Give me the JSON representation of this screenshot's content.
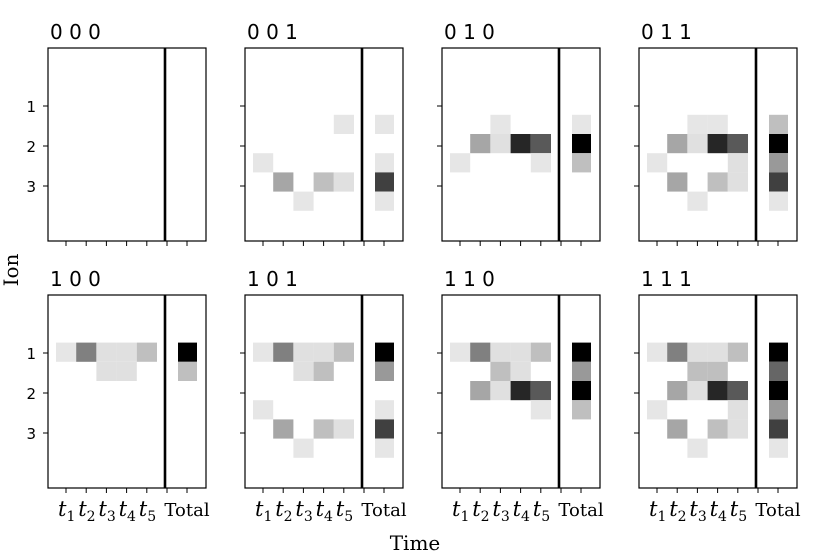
{
  "chart_data": {
    "type": "heatmap",
    "xlabel": "Time",
    "ylabel": "Ion",
    "y_ticks": [
      "1",
      "2",
      "3"
    ],
    "x_ticks": [
      {
        "base": "t",
        "sub": "1"
      },
      {
        "base": "t",
        "sub": "2"
      },
      {
        "base": "t",
        "sub": "3"
      },
      {
        "base": "t",
        "sub": "4"
      },
      {
        "base": "t",
        "sub": "5"
      }
    ],
    "total_label": "Total",
    "value_range": [
      0,
      1
    ],
    "note": "cells: [row, col, intensity]; row 0..7 top to bottom (ion 1 = row 2, ion 2 = row 3, ion 3 = row 4 of finer grid), col 0..5 time steps; total cells: [row, intensity]",
    "panels": [
      {
        "title": "0 0 0",
        "cells": [],
        "totals": []
      },
      {
        "title": "0 0 1",
        "cells": [
          [
            4,
            4,
            0.1
          ],
          [
            6,
            0,
            0.1
          ],
          [
            7,
            1,
            0.35
          ],
          [
            7,
            3,
            0.25
          ],
          [
            7,
            4,
            0.12
          ],
          [
            8,
            2,
            0.1
          ]
        ],
        "totals": [
          [
            4,
            0.1
          ],
          [
            6,
            0.1
          ],
          [
            7,
            0.75
          ],
          [
            8,
            0.1
          ]
        ]
      },
      {
        "title": "0 1 0",
        "cells": [
          [
            4,
            2,
            0.1
          ],
          [
            5,
            1,
            0.35
          ],
          [
            5,
            2,
            0.12
          ],
          [
            5,
            3,
            0.85
          ],
          [
            5,
            4,
            0.65
          ],
          [
            6,
            0,
            0.1
          ],
          [
            6,
            4,
            0.1
          ]
        ],
        "totals": [
          [
            4,
            0.1
          ],
          [
            5,
            1.0
          ],
          [
            6,
            0.25
          ]
        ]
      },
      {
        "title": "0 1 1",
        "cells": [
          [
            4,
            2,
            0.1
          ],
          [
            4,
            3,
            0.1
          ],
          [
            5,
            1,
            0.35
          ],
          [
            5,
            2,
            0.12
          ],
          [
            5,
            3,
            0.85
          ],
          [
            5,
            4,
            0.65
          ],
          [
            6,
            0,
            0.1
          ],
          [
            6,
            4,
            0.12
          ],
          [
            7,
            1,
            0.35
          ],
          [
            7,
            3,
            0.25
          ],
          [
            7,
            4,
            0.12
          ],
          [
            8,
            2,
            0.1
          ]
        ],
        "totals": [
          [
            4,
            0.25
          ],
          [
            5,
            1.0
          ],
          [
            6,
            0.4
          ],
          [
            7,
            0.75
          ],
          [
            8,
            0.1
          ]
        ]
      },
      {
        "title": "1 0 0",
        "cells": [
          [
            3,
            0,
            0.1
          ],
          [
            3,
            1,
            0.5
          ],
          [
            3,
            2,
            0.12
          ],
          [
            3,
            3,
            0.12
          ],
          [
            3,
            4,
            0.25
          ],
          [
            4,
            2,
            0.12
          ],
          [
            4,
            3,
            0.12
          ]
        ],
        "totals": [
          [
            3,
            1.0
          ],
          [
            4,
            0.25
          ]
        ]
      },
      {
        "title": "1 0 1",
        "cells": [
          [
            3,
            0,
            0.1
          ],
          [
            3,
            1,
            0.5
          ],
          [
            3,
            2,
            0.12
          ],
          [
            3,
            3,
            0.12
          ],
          [
            3,
            4,
            0.25
          ],
          [
            4,
            2,
            0.12
          ],
          [
            4,
            3,
            0.25
          ],
          [
            6,
            0,
            0.1
          ],
          [
            7,
            1,
            0.35
          ],
          [
            7,
            3,
            0.25
          ],
          [
            7,
            4,
            0.12
          ],
          [
            8,
            2,
            0.1
          ]
        ],
        "totals": [
          [
            3,
            1.0
          ],
          [
            4,
            0.4
          ],
          [
            6,
            0.1
          ],
          [
            7,
            0.75
          ],
          [
            8,
            0.1
          ]
        ]
      },
      {
        "title": "1 1 0",
        "cells": [
          [
            3,
            0,
            0.1
          ],
          [
            3,
            1,
            0.5
          ],
          [
            3,
            2,
            0.12
          ],
          [
            3,
            3,
            0.12
          ],
          [
            3,
            4,
            0.25
          ],
          [
            4,
            2,
            0.25
          ],
          [
            4,
            3,
            0.12
          ],
          [
            5,
            1,
            0.35
          ],
          [
            5,
            2,
            0.12
          ],
          [
            5,
            3,
            0.85
          ],
          [
            5,
            4,
            0.65
          ],
          [
            6,
            4,
            0.1
          ]
        ],
        "totals": [
          [
            3,
            1.0
          ],
          [
            4,
            0.4
          ],
          [
            5,
            1.0
          ],
          [
            6,
            0.25
          ]
        ]
      },
      {
        "title": "1 1 1",
        "cells": [
          [
            3,
            0,
            0.1
          ],
          [
            3,
            1,
            0.5
          ],
          [
            3,
            2,
            0.12
          ],
          [
            3,
            3,
            0.12
          ],
          [
            3,
            4,
            0.25
          ],
          [
            4,
            2,
            0.25
          ],
          [
            4,
            3,
            0.25
          ],
          [
            5,
            1,
            0.35
          ],
          [
            5,
            2,
            0.12
          ],
          [
            5,
            3,
            0.85
          ],
          [
            5,
            4,
            0.65
          ],
          [
            6,
            0,
            0.1
          ],
          [
            6,
            4,
            0.12
          ],
          [
            7,
            1,
            0.35
          ],
          [
            7,
            3,
            0.25
          ],
          [
            7,
            4,
            0.12
          ],
          [
            8,
            2,
            0.1
          ]
        ],
        "totals": [
          [
            3,
            1.0
          ],
          [
            4,
            0.6
          ],
          [
            5,
            1.0
          ],
          [
            6,
            0.4
          ],
          [
            7,
            0.75
          ],
          [
            8,
            0.1
          ]
        ]
      }
    ]
  }
}
